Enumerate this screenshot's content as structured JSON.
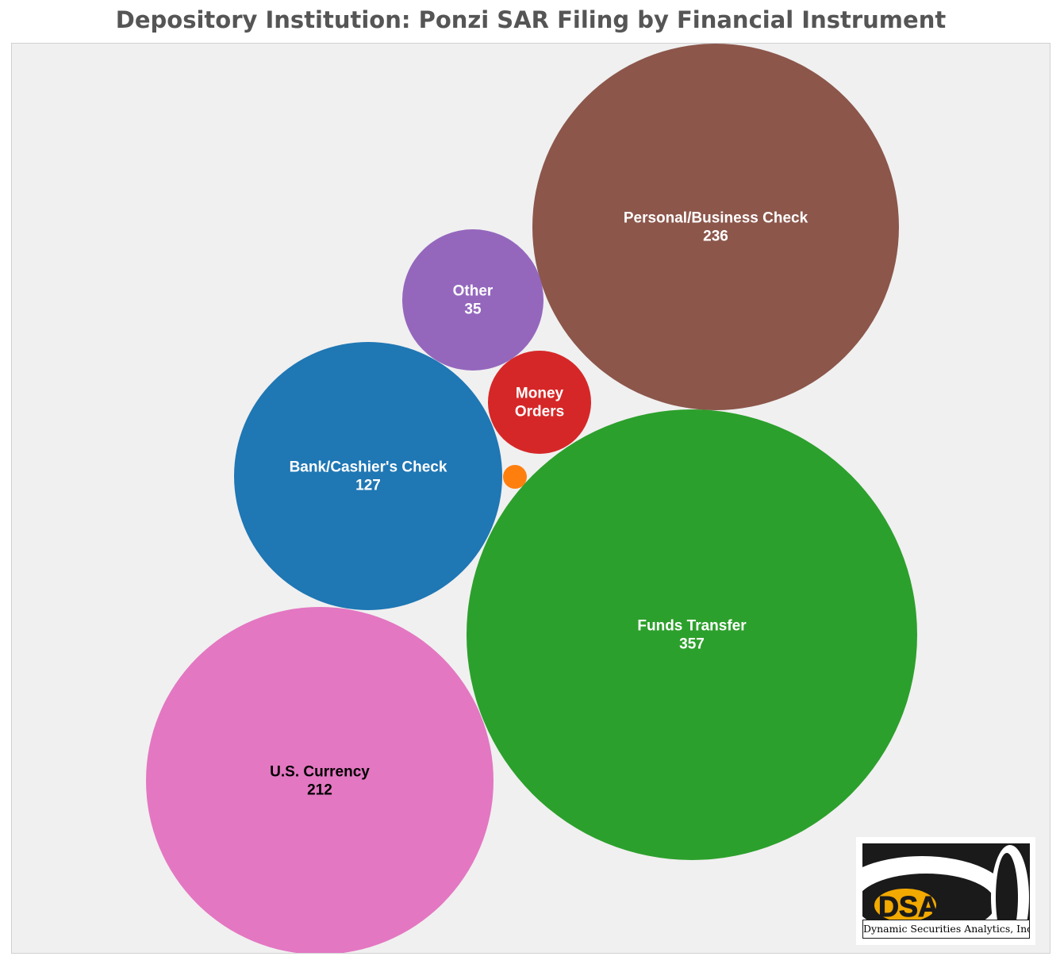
{
  "chart_data": {
    "type": "bubble",
    "title": "Depository Institution: Ponzi SAR Filing by Financial Instrument",
    "series": [
      {
        "name": "Personal/Business Check",
        "value": 236,
        "color": "#8c564b",
        "label_color": "#ffffff",
        "show_value": true
      },
      {
        "name": "Other",
        "value": 35,
        "color": "#9467bd",
        "label_color": "#ffffff",
        "show_value": true
      },
      {
        "name": "Money Orders",
        "value": null,
        "color": "#d62728",
        "label_color": "#ffffff",
        "show_value": false
      },
      {
        "name": "Bank/Cashier's Check",
        "value": 127,
        "color": "#1f77b4",
        "label_color": "#ffffff",
        "show_value": true
      },
      {
        "name": "Funds Transfer",
        "value": 357,
        "color": "#2ca02c",
        "label_color": "#ffffff",
        "show_value": true
      },
      {
        "name": "U.S. Currency",
        "value": 212,
        "color": "#e377c2",
        "label_color": "#000000",
        "show_value": true
      },
      {
        "name": "",
        "value": null,
        "color": "#ff7f0e",
        "label_color": "#ffffff",
        "show_value": false
      }
    ]
  },
  "logo": {
    "mark": "DSA",
    "caption": "Dynamic Securities Analytics, Inc."
  },
  "colors": {
    "background": "#f0f0f0",
    "title": "#555555"
  }
}
